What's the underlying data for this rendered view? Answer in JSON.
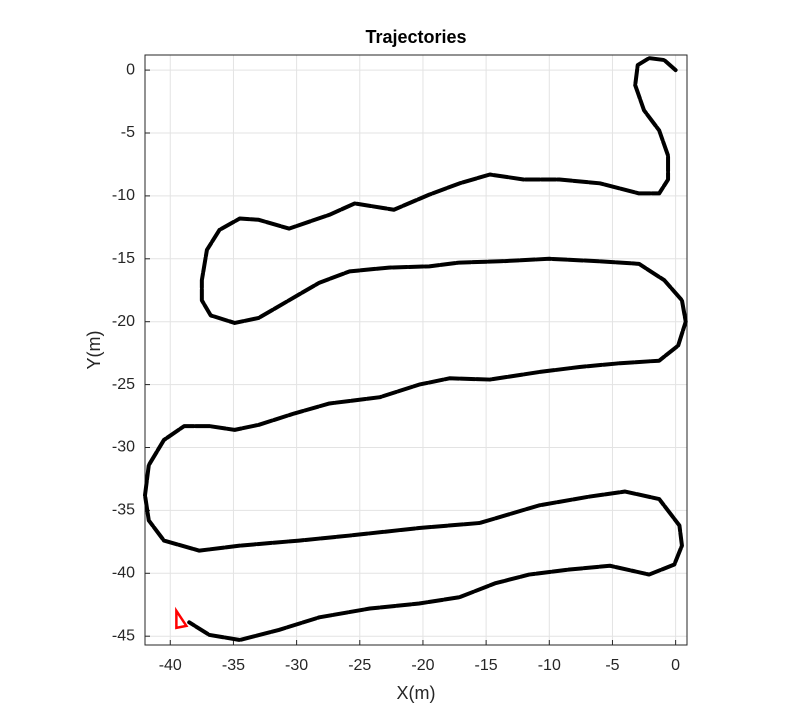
{
  "chart_data": {
    "type": "line",
    "title": "Trajectories",
    "x_label": "X(m)",
    "y_label": "Y(m)",
    "xlim": [
      -42,
      0.9
    ],
    "ylim": [
      -45.7,
      1.2
    ],
    "xticks": [
      -40,
      -35,
      -30,
      -25,
      -20,
      -15,
      -10,
      -5,
      0
    ],
    "yticks": [
      0,
      -5,
      -10,
      -15,
      -20,
      -25,
      -30,
      -35,
      -40,
      -45
    ],
    "grid": true,
    "series": [
      {
        "color": "#000000",
        "marker": "none",
        "x": [
          0,
          -0.9,
          -2.1,
          -3,
          -3.2,
          -2.5,
          -1.3,
          -0.6,
          -0.6,
          -1.3,
          -2.9,
          -6,
          -9.2,
          -12,
          -14.7,
          -17.1,
          -19.5,
          -22.3,
          -25.4,
          -27.4,
          -30.6,
          -33,
          -34.5,
          -36.1,
          -37.1,
          -37.5,
          -37.5,
          -36.8,
          -34.9,
          -33,
          -30.6,
          -28.2,
          -25.8,
          -22.7,
          -19.5,
          -17.1,
          -13.9,
          -10,
          -6,
          -2.9,
          -0.9,
          0.5,
          0.8,
          0.2,
          -1.3,
          -4.4,
          -7.6,
          -10.8,
          -14.7,
          -17.9,
          -20.3,
          -23.4,
          -27.4,
          -30.2,
          -33,
          -34.9,
          -36.9,
          -38.9,
          -40.5,
          -41.7,
          -42,
          -41.7,
          -40.5,
          -37.7,
          -34.5,
          -29.8,
          -25.8,
          -20.3,
          -15.5,
          -10.8,
          -6.8,
          -4,
          -1.3,
          0.3,
          0.5,
          -0.1,
          -2.1,
          -5.2,
          -8.4,
          -11.6,
          -14.3,
          -17.1,
          -20.3,
          -24.2,
          -28.2,
          -31.4,
          -34.5,
          -36.9,
          -38.5
        ],
        "values": [
          0,
          0.8,
          0.95,
          0.4,
          -1.2,
          -3.2,
          -4.8,
          -6.8,
          -8.7,
          -9.8,
          -9.8,
          -9,
          -8.7,
          -8.7,
          -8.3,
          -9,
          -9.9,
          -11.1,
          -10.6,
          -11.5,
          -12.6,
          -11.9,
          -11.8,
          -12.7,
          -14.3,
          -16.7,
          -18.3,
          -19.5,
          -20.1,
          -19.7,
          -18.3,
          -16.9,
          -16,
          -15.7,
          -15.6,
          -15.3,
          -15.2,
          -15,
          -15.2,
          -15.4,
          -16.7,
          -18.3,
          -20,
          -21.9,
          -23.1,
          -23.3,
          -23.6,
          -24,
          -24.6,
          -24.5,
          -25,
          -26,
          -26.5,
          -27.3,
          -28.2,
          -28.6,
          -28.3,
          -28.3,
          -29.4,
          -31.4,
          -33.8,
          -35.8,
          -37.4,
          -38.2,
          -37.8,
          -37.4,
          -37,
          -36.4,
          -36,
          -34.6,
          -33.9,
          -33.5,
          -34.1,
          -36.2,
          -37.8,
          -39.3,
          -40.1,
          -39.4,
          -39.7,
          -40.1,
          -40.8,
          -41.9,
          -42.4,
          -42.8,
          -43.5,
          -44.5,
          -45.3,
          -44.9,
          -43.9
        ]
      },
      {
        "color": "#ff0000",
        "marker": "triangle",
        "x": [
          -39.2
        ],
        "values": [
          -43.7
        ]
      }
    ]
  }
}
